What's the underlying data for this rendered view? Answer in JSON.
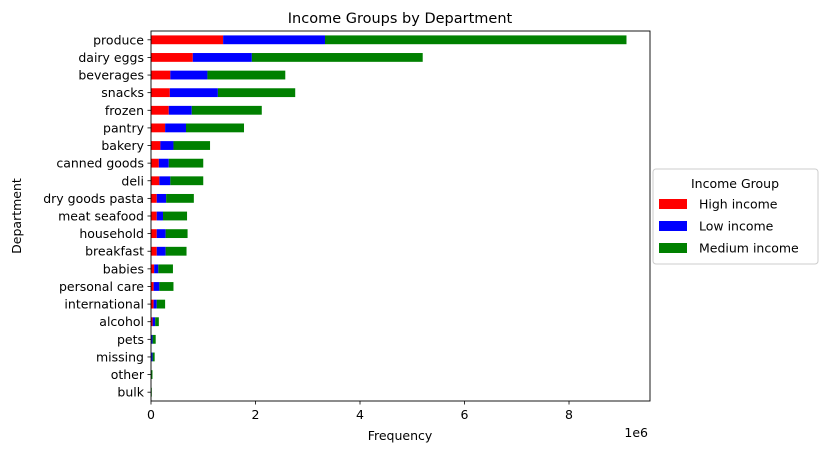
{
  "chart_data": {
    "type": "bar",
    "orientation": "horizontal",
    "stacked": true,
    "title": "Income Groups by Department",
    "xlabel": "Frequency",
    "ylabel": "Department",
    "x_offset_label": "1e6",
    "x_ticks": [
      "0",
      "2",
      "4",
      "6",
      "8"
    ],
    "xlim": [
      0,
      9.55
    ],
    "x_unit_multiplier": 1000000,
    "categories": [
      "produce",
      "dairy eggs",
      "beverages",
      "snacks",
      "frozen",
      "pantry",
      "bakery",
      "canned goods",
      "deli",
      "dry goods pasta",
      "meat seafood",
      "household",
      "breakfast",
      "babies",
      "personal care",
      "international",
      "alcohol",
      "pets",
      "missing",
      "other",
      "bulk"
    ],
    "series": [
      {
        "name": "High income",
        "color": "#ff0000",
        "values": [
          1.38,
          0.8,
          0.37,
          0.36,
          0.34,
          0.27,
          0.18,
          0.15,
          0.16,
          0.11,
          0.11,
          0.11,
          0.11,
          0.06,
          0.05,
          0.05,
          0.03,
          0.01,
          0.01,
          0.003,
          0.002
        ]
      },
      {
        "name": "Low income",
        "color": "#0000ff",
        "values": [
          1.95,
          1.13,
          0.71,
          0.92,
          0.44,
          0.4,
          0.25,
          0.19,
          0.21,
          0.18,
          0.12,
          0.17,
          0.17,
          0.08,
          0.11,
          0.06,
          0.05,
          0.02,
          0.02,
          0.005,
          0.003
        ]
      },
      {
        "name": "Medium income",
        "color": "#008000",
        "values": [
          5.77,
          3.27,
          1.49,
          1.48,
          1.34,
          1.11,
          0.7,
          0.66,
          0.63,
          0.53,
          0.46,
          0.42,
          0.4,
          0.28,
          0.27,
          0.16,
          0.07,
          0.06,
          0.04,
          0.02,
          0.01
        ]
      }
    ],
    "legend": {
      "title": "Income Group",
      "placement": "center-right, outside plot"
    }
  }
}
